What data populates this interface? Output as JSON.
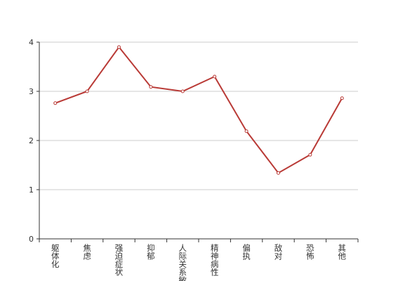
{
  "chart_data": {
    "type": "line",
    "categories": [
      "躯体化",
      "焦虑",
      "强迫症状",
      "抑郁",
      "人际关系敏感",
      "精神病性",
      "偏执",
      "敌对",
      "恐怖",
      "其他"
    ],
    "series": [
      {
        "color": "#b93a36",
        "values": [
          2.76,
          3.0,
          3.9,
          3.09,
          3.0,
          3.3,
          2.19,
          1.34,
          1.71,
          2.86
        ]
      }
    ],
    "ylim": [
      0,
      4
    ],
    "yticks": [
      0,
      1,
      2,
      3,
      4
    ],
    "grid": true
  }
}
